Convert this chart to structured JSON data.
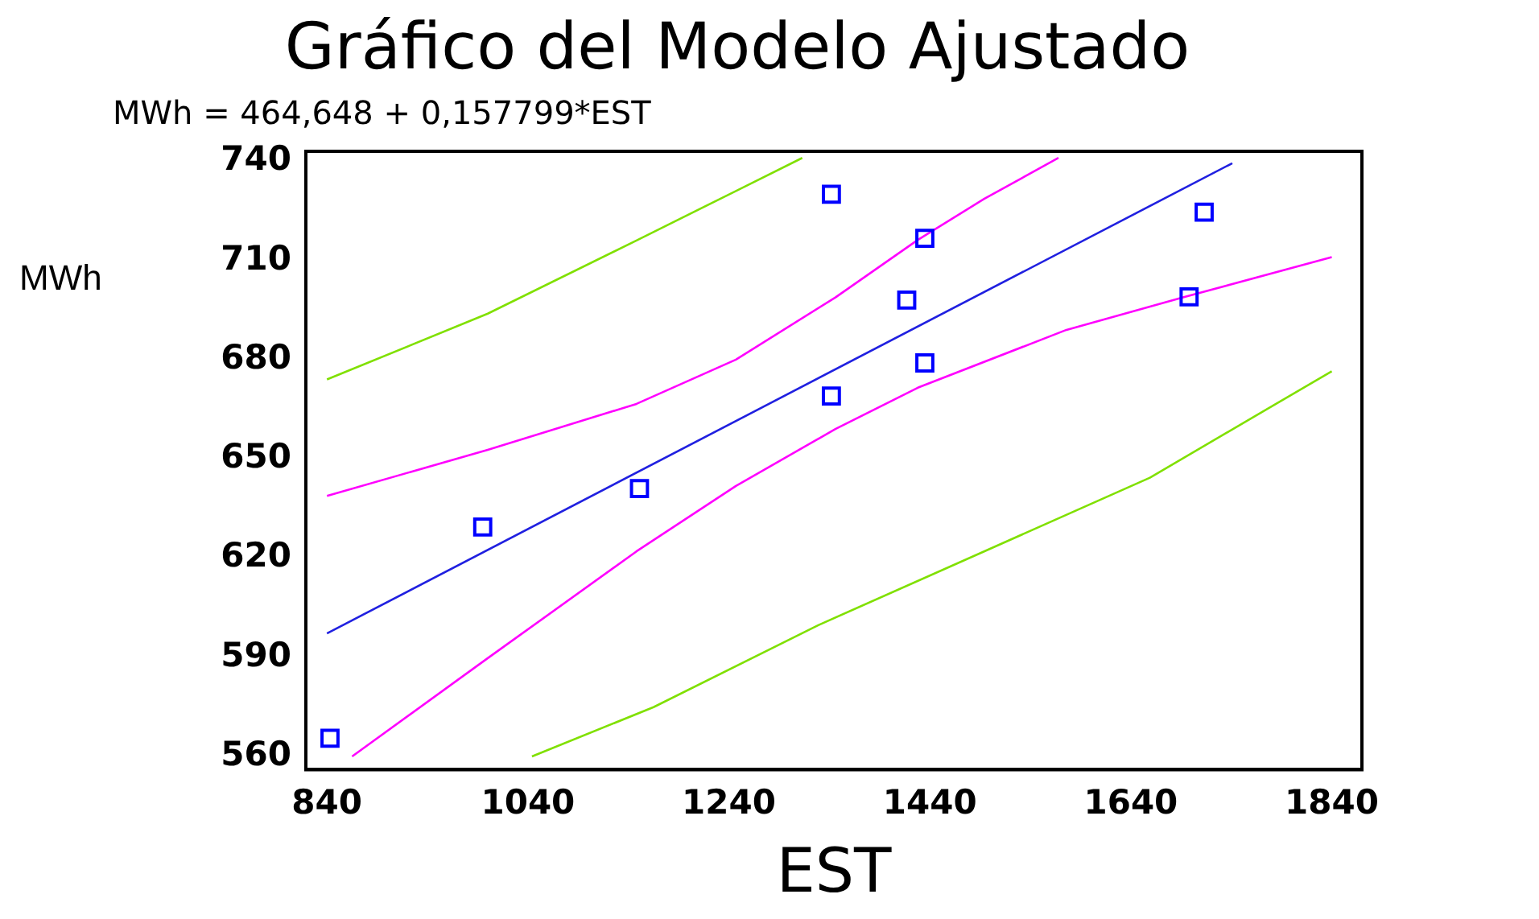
{
  "chart_data": {
    "type": "scatter",
    "title": "Gráfico del Modelo Ajustado",
    "subtitle": "MWh = 464,648 + 0,157799*EST",
    "xlabel": "EST",
    "ylabel": "MWh",
    "xlim": [
      819,
      1870
    ],
    "ylim": [
      556,
      743
    ],
    "xticks": [
      840,
      1040,
      1240,
      1440,
      1640,
      1840
    ],
    "yticks": [
      560,
      590,
      620,
      650,
      680,
      710,
      740
    ],
    "grid": false,
    "legend": false,
    "series": [
      {
        "marker": "square",
        "color": "#0000ff",
        "x": [
          843,
          995,
          1151,
          1342,
          1342,
          1417,
          1435,
          1435,
          1698,
          1713
        ],
        "values": [
          565.5,
          629.4,
          641,
          669,
          730,
          698,
          716.7,
          679,
          699,
          724.6
        ]
      },
      {
        "type": "line",
        "marker": "none",
        "color": "#2020e0",
        "x": [
          840,
          1741
        ],
        "values": [
          597.2,
          739.4
        ]
      },
      {
        "type": "line",
        "marker": "none",
        "color": "#ff00ff",
        "x": [
          840,
          1000,
          1148,
          1247,
          1346,
          1428,
          1494,
          1568
        ],
        "values": [
          638.8,
          652.7,
          666.6,
          680,
          698.8,
          716.2,
          728.6,
          741
        ]
      },
      {
        "type": "line",
        "marker": "none",
        "color": "#ff00ff",
        "x": [
          865,
          1000,
          1148,
          1247,
          1346,
          1428,
          1576,
          1692,
          1840
        ],
        "values": [
          560,
          589.7,
          622,
          641.8,
          659,
          671.5,
          689,
          698.8,
          711
        ]
      },
      {
        "type": "line",
        "marker": "none",
        "color": "#80e000",
        "x": [
          840,
          1000,
          1148,
          1247,
          1313
        ],
        "values": [
          674,
          693.9,
          716,
          731,
          741
        ]
      },
      {
        "type": "line",
        "marker": "none",
        "color": "#80e000",
        "x": [
          1044,
          1165,
          1329,
          1494,
          1659,
          1840
        ],
        "values": [
          560,
          574.9,
          599.7,
          622,
          644.3,
          676.5
        ]
      }
    ]
  }
}
